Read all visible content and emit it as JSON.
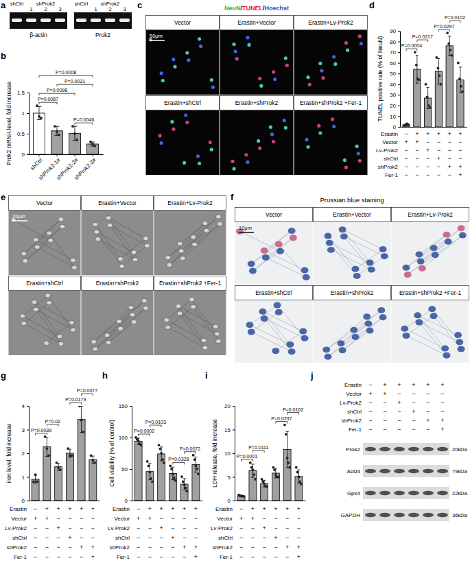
{
  "panel_labels": [
    "a",
    "b",
    "c",
    "d",
    "e",
    "f",
    "g",
    "h",
    "i",
    "j"
  ],
  "gel": {
    "headers": [
      "shCtrl",
      "shProk2"
    ],
    "lanes": [
      "1",
      "2",
      "3"
    ],
    "genes": [
      "β-actin",
      "Prok2"
    ]
  },
  "micrographs": {
    "conditions": [
      "Vector",
      "Erastin+Vector",
      "Erastin+Lv-Prok2",
      "Erastin+shCtrl",
      "Erastin+shProk2",
      "Erastin+shProk2 +Fer-1"
    ],
    "c": {
      "stain": [
        {
          "text": "NeuN",
          "color": "#2eb83a"
        },
        {
          "text": "TUNEL",
          "color": "#e3202a"
        },
        {
          "text": "Hoechst",
          "color": "#2a4bd7"
        }
      ],
      "separator": "/",
      "scale_bar": "50μm"
    },
    "e": {
      "scale_bar": "20μm"
    },
    "f": {
      "title": "Prussian blue staining",
      "scale_bar": "10μm"
    }
  },
  "treatments": [
    {
      "name": "Erastin",
      "signs": [
        "−",
        "+",
        "+",
        "+",
        "+",
        "+"
      ]
    },
    {
      "name": "Vector",
      "signs": [
        "+",
        "+",
        "−",
        "−",
        "−",
        "−"
      ]
    },
    {
      "name": "Lv-Prok2",
      "signs": [
        "−",
        "−",
        "+",
        "−",
        "−",
        "−"
      ]
    },
    {
      "name": "shCtrl",
      "signs": [
        "−",
        "−",
        "−",
        "+",
        "−",
        "−"
      ]
    },
    {
      "name": "shProk2",
      "signs": [
        "−",
        "−",
        "−",
        "−",
        "+",
        "+"
      ]
    },
    {
      "name": "Fer-1",
      "signs": [
        "−",
        "−",
        "−",
        "−",
        "−",
        "+"
      ]
    }
  ],
  "western": {
    "bands": [
      {
        "name": "Prok2",
        "size": "20kDa"
      },
      {
        "name": "Acsl4",
        "size": "79kDa"
      },
      {
        "name": "Gpx4",
        "size": "22kDa"
      },
      {
        "name": "GAPDH",
        "size": "36kDa"
      }
    ]
  },
  "chart_data": [
    {
      "type": "bar",
      "y_label": "Prok2 mRNA level, fold increase",
      "categories": [
        "shCtrl",
        "shProk2-1#",
        "shProk2-2#",
        "shProk2-3#"
      ],
      "series": [
        {
          "values": [
            1.0,
            0.57,
            0.51,
            0.25
          ],
          "errors": [
            0.16,
            0.11,
            0.17,
            0.05
          ],
          "points": [
            [
              1.18,
              0.92,
              0.88
            ],
            [
              0.68,
              0.55,
              0.47
            ],
            [
              0.68,
              0.5,
              0.35
            ],
            [
              0.3,
              0.25,
              0.2
            ]
          ],
          "colors": [
            "#ffffff",
            "#a0a0a0",
            "#a0a0a0",
            "#a0a0a0"
          ]
        }
      ],
      "ylim": [
        0,
        1.5
      ],
      "yticks": [
        0,
        0.5,
        1,
        1.5
      ],
      "annotations": [
        {
          "text": "P=0.0087",
          "from": 0,
          "to": 1
        },
        {
          "text": "P=0.0098",
          "from": 0,
          "to": 2
        },
        {
          "text": "P=0.0008",
          "from": 0,
          "to": 3
        },
        {
          "text": "P=0.0031",
          "from": 1,
          "to": 3
        },
        {
          "text": "P=0.0046",
          "from": 2,
          "to": 3
        }
      ]
    },
    {
      "type": "bar",
      "y_label": "TUNEL positive rate (% of NeuN)",
      "categories": [
        null,
        null,
        null,
        null,
        null,
        null
      ],
      "series": [
        {
          "values": [
            2,
            54,
            27,
            52,
            76,
            44
          ],
          "errors": [
            1,
            13,
            10,
            12,
            9,
            12
          ],
          "points": [
            [
              1,
              2,
              3,
              2
            ],
            [
              70,
              58,
              45,
              44
            ],
            [
              40,
              28,
              20,
              18
            ],
            [
              65,
              55,
              48,
              40
            ],
            [
              88,
              78,
              72,
              67
            ],
            [
              60,
              45,
              38,
              33
            ]
          ],
          "colors": [
            "#a0a0a0",
            "#a0a0a0",
            "#a0a0a0",
            "#a0a0a0",
            "#a0a0a0",
            "#a0a0a0"
          ]
        }
      ],
      "ylim": [
        0,
        90
      ],
      "yticks": [
        0,
        10,
        20,
        30,
        40,
        50,
        60,
        70,
        80,
        90
      ],
      "annotations": [
        {
          "text": "P=0.0004",
          "from": 0,
          "to": 1
        },
        {
          "text": "P=0.0217",
          "from": 1,
          "to": 2
        },
        {
          "text": "P=0.0297",
          "from": 3,
          "to": 4
        },
        {
          "text": "P=0.0102",
          "from": 4,
          "to": 5
        }
      ]
    },
    {
      "type": "bar",
      "y_label": "iron level, fold increase",
      "categories": [
        null,
        null,
        null,
        null,
        null,
        null
      ],
      "series": [
        {
          "values": [
            0.9,
            2.27,
            1.43,
            2.0,
            3.43,
            1.73
          ],
          "errors": [
            0.17,
            0.4,
            0.15,
            0.17,
            0.55,
            0.15
          ],
          "points": [
            [
              0.8,
              1.1,
              0.8
            ],
            [
              2.7,
              2.2,
              1.9
            ],
            [
              1.6,
              1.4,
              1.3
            ],
            [
              2.2,
              1.9,
              1.9
            ],
            [
              4.0,
              3.4,
              2.9
            ],
            [
              1.9,
              1.7,
              1.6
            ]
          ],
          "colors": [
            "#a0a0a0",
            "#a0a0a0",
            "#a0a0a0",
            "#a0a0a0",
            "#a0a0a0",
            "#a0a0a0"
          ]
        }
      ],
      "ylim": [
        0,
        4
      ],
      "yticks": [
        0,
        1,
        2,
        3,
        4
      ],
      "annotations": [
        {
          "text": "P=0.0039",
          "from": 0,
          "to": 1
        },
        {
          "text": "P=0.02",
          "from": 1,
          "to": 2
        },
        {
          "text": "P=0.0179",
          "from": 3,
          "to": 4
        },
        {
          "text": "P=0.0077",
          "from": 4,
          "to": 5
        }
      ]
    },
    {
      "type": "bar",
      "y_label": "Cell viability (% of control)",
      "categories": [
        null,
        null,
        null,
        null,
        null,
        null
      ],
      "series": [
        {
          "values": [
            94,
            46,
            74,
            43,
            26,
            57
          ],
          "errors": [
            5,
            13,
            11,
            10,
            9,
            12
          ],
          "points": [
            [
              100,
              97,
              95,
              90,
              88
            ],
            [
              62,
              55,
              45,
              35,
              30
            ],
            [
              88,
              82,
              75,
              65,
              60
            ],
            [
              55,
              50,
              42,
              36,
              32
            ],
            [
              38,
              30,
              25,
              20,
              15
            ],
            [
              72,
              65,
              55,
              50,
              42
            ]
          ],
          "colors": [
            "#a0a0a0",
            "#a0a0a0",
            "#a0a0a0",
            "#a0a0a0",
            "#a0a0a0",
            "#a0a0a0"
          ]
        }
      ],
      "ylim": [
        0,
        150
      ],
      "yticks": [
        0,
        50,
        100,
        150
      ],
      "annotations": [
        {
          "text": "P=0.0002",
          "from": 0,
          "to": 1
        },
        {
          "text": "P=0.0103",
          "from": 1,
          "to": 2
        },
        {
          "text": "P=0.0328",
          "from": 3,
          "to": 4
        },
        {
          "text": "P=0.0072",
          "from": 4,
          "to": 5
        }
      ]
    },
    {
      "type": "bar",
      "y_label": "LDH release, fold increase",
      "categories": [
        null,
        null,
        null,
        null,
        null,
        null
      ],
      "series": [
        {
          "values": [
            1,
            6.3,
            3.6,
            5.8,
            10.8,
            5.1
          ],
          "errors": [
            0.15,
            1.4,
            0.7,
            1.0,
            3.8,
            1.4
          ],
          "points": [
            [
              1.2,
              1.0,
              1.0,
              0.9,
              0.9
            ],
            [
              8,
              7,
              6.5,
              5.5,
              4.5
            ],
            [
              4.5,
              4,
              3.5,
              3,
              3
            ],
            [
              7,
              6.5,
              5.5,
              5,
              5
            ],
            [
              16,
              14,
              9,
              8,
              7
            ],
            [
              7,
              6,
              5,
              4,
              3.5
            ]
          ],
          "colors": [
            "#a0a0a0",
            "#a0a0a0",
            "#a0a0a0",
            "#a0a0a0",
            "#a0a0a0",
            "#a0a0a0"
          ]
        }
      ],
      "ylim": [
        0,
        20
      ],
      "yticks": [
        0,
        5,
        10,
        15,
        20
      ],
      "annotations": [
        {
          "text": "P=0.0001",
          "from": 0,
          "to": 1
        },
        {
          "text": "P=0.0111",
          "from": 1,
          "to": 2
        },
        {
          "text": "P=0.0237",
          "from": 3,
          "to": 4
        },
        {
          "text": "P=0.0162",
          "from": 4,
          "to": 5
        }
      ]
    }
  ]
}
